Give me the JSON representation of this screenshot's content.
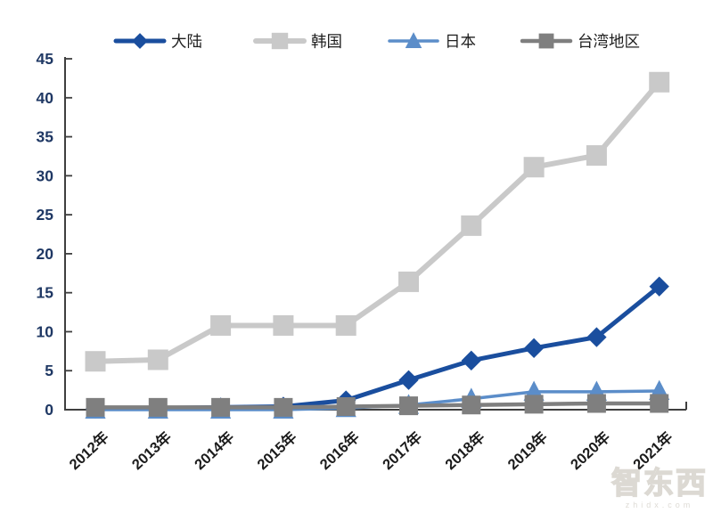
{
  "watermark": {
    "logo": "智东西",
    "domain": "zhidx.com"
  },
  "chart_data": {
    "type": "line",
    "title": "",
    "xlabel": "",
    "ylabel": "",
    "categories": [
      "2012年",
      "2013年",
      "2014年",
      "2015年",
      "2016年",
      "2017年",
      "2018年",
      "2019年",
      "2020年",
      "2021年"
    ],
    "series": [
      {
        "name": "大陆",
        "color": "#1A4E9E",
        "marker": "diamond",
        "values": [
          0.1,
          0.2,
          0.3,
          0.4,
          1.2,
          3.8,
          6.3,
          7.9,
          9.3,
          15.8
        ]
      },
      {
        "name": "韩国",
        "color": "#C9C9C9",
        "marker": "square",
        "values": [
          6.2,
          6.4,
          10.8,
          10.8,
          10.8,
          16.4,
          23.6,
          31.1,
          32.6,
          42.0
        ]
      },
      {
        "name": "日本",
        "color": "#5B8DC9",
        "marker": "triangle",
        "values": [
          0.0,
          0.0,
          0.0,
          0.0,
          0.2,
          0.6,
          1.4,
          2.3,
          2.3,
          2.4
        ]
      },
      {
        "name": "台湾地区",
        "color": "#7F7F7F",
        "marker": "square",
        "values": [
          0.3,
          0.3,
          0.3,
          0.3,
          0.4,
          0.5,
          0.6,
          0.7,
          0.8,
          0.8
        ]
      }
    ],
    "ylim": [
      0,
      45
    ],
    "yticks": [
      0,
      5,
      10,
      15,
      20,
      25,
      30,
      35,
      40,
      45
    ],
    "grid": false,
    "legend_position": "top",
    "axis_color": "#3F3F3F",
    "ytick_label_color": "#1F3864",
    "xtick_label_color": "#1B1B1B",
    "legend_text_color": "#1F1F1F"
  }
}
